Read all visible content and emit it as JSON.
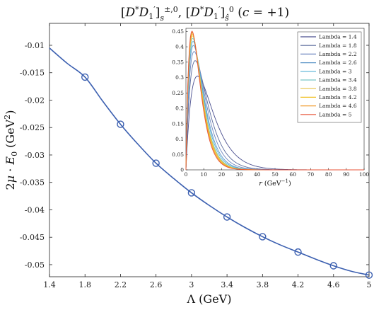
{
  "chart_data": [
    {
      "type": "line",
      "title": "[D* D1′]s±,0 , [D* D1′]ŝ0  (c = +1)",
      "xlabel": "Λ (GeV)",
      "ylabel": "2μ · E0 (GeV²)",
      "xlim": [
        1.4,
        5.0
      ],
      "ylim": [
        -0.0522,
        -0.006
      ],
      "xticks": [
        "1.4",
        "1.8",
        "2.2",
        "2.6",
        "3",
        "3.4",
        "3.8",
        "4.2",
        "4.6",
        "5"
      ],
      "yticks": [
        "-0.01",
        "-0.015",
        "-0.02",
        "-0.025",
        "-0.03",
        "-0.035",
        "-0.04",
        "-0.045",
        "-0.05"
      ],
      "ytick_values": [
        -0.01,
        -0.015,
        -0.02,
        -0.025,
        -0.03,
        -0.035,
        -0.04,
        -0.045,
        -0.05
      ],
      "grid": false,
      "curve": {
        "x": [
          1.4,
          1.6,
          1.8,
          2.0,
          2.2,
          2.4,
          2.6,
          2.8,
          3.0,
          3.2,
          3.4,
          3.6,
          3.8,
          4.0,
          4.2,
          4.4,
          4.6,
          4.8,
          5.0
        ],
        "y": [
          -0.0105,
          -0.0133,
          -0.0158,
          -0.0202,
          -0.0244,
          -0.0281,
          -0.0315,
          -0.0343,
          -0.0369,
          -0.0392,
          -0.0413,
          -0.0432,
          -0.0449,
          -0.0464,
          -0.0477,
          -0.049,
          -0.0502,
          -0.0512,
          -0.0519
        ]
      },
      "markers": {
        "x": [
          1.8,
          2.2,
          2.6,
          3.0,
          3.4,
          3.8,
          4.2,
          4.6,
          5.0
        ],
        "y": [
          -0.0158,
          -0.0244,
          -0.0315,
          -0.0369,
          -0.0413,
          -0.0449,
          -0.0477,
          -0.0502,
          -0.0519
        ]
      },
      "line_color": "#3b5fb0"
    },
    {
      "type": "line",
      "xlabel": "r (GeV⁻¹)",
      "xlim": [
        0,
        100
      ],
      "ylim": [
        0,
        0.46
      ],
      "xticks": [
        "0",
        "10",
        "20",
        "30",
        "40",
        "50",
        "60",
        "70",
        "80",
        "90",
        "100"
      ],
      "yticks": [
        "0",
        "0.05",
        "0.1",
        "0.15",
        "0.2",
        "0.25",
        "0.3",
        "0.35",
        "0.4",
        "0.45"
      ],
      "legend_position": "top-right",
      "series": [
        {
          "name": "Lambda = 1.4",
          "color": "#4a4f8f",
          "peak": 0.305,
          "rpeak": 6.5
        },
        {
          "name": "Lambda = 1.8",
          "color": "#5a6a9c",
          "peak": 0.355,
          "rpeak": 5.2
        },
        {
          "name": "Lambda = 2.2",
          "color": "#6e86bf",
          "peak": 0.385,
          "rpeak": 4.6
        },
        {
          "name": "Lambda = 2.6",
          "color": "#5f97c8",
          "peak": 0.405,
          "rpeak": 4.2
        },
        {
          "name": "Lambda = 3",
          "color": "#57b1d6",
          "peak": 0.418,
          "rpeak": 4.0
        },
        {
          "name": "Lambda = 3.4",
          "color": "#79c8c8",
          "peak": 0.428,
          "rpeak": 3.8
        },
        {
          "name": "Lambda = 3.8",
          "color": "#e6c24a",
          "peak": 0.436,
          "rpeak": 3.7
        },
        {
          "name": "Lambda = 4.2",
          "color": "#f0c020",
          "peak": 0.442,
          "rpeak": 3.6
        },
        {
          "name": "Lambda = 4.6",
          "color": "#f09a2a",
          "peak": 0.447,
          "rpeak": 3.5
        },
        {
          "name": "Lambda = 5",
          "color": "#e8563a",
          "peak": 0.451,
          "rpeak": 3.4
        }
      ]
    }
  ]
}
